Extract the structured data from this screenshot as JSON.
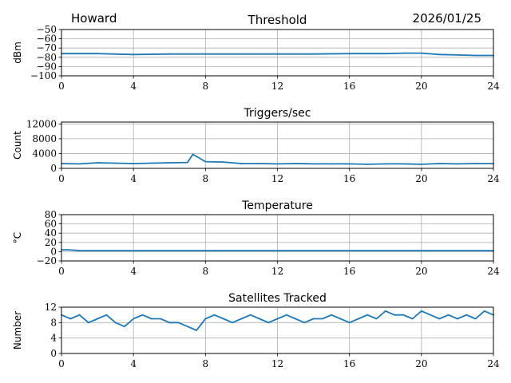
{
  "header": {
    "station": "Howard",
    "date": "2026/01/25"
  },
  "colors": {
    "series": "#1f77b4",
    "grid": "#b0b0b0",
    "axis": "#000000"
  },
  "chart_data": [
    {
      "type": "line",
      "title": "Threshold",
      "xlabel": "",
      "ylabel": "dBm",
      "xlim": [
        0,
        24
      ],
      "ylim": [
        -100,
        -50
      ],
      "xticks": [
        "0",
        "4",
        "8",
        "12",
        "16",
        "20",
        "24"
      ],
      "yticks": [
        "−50",
        "−60",
        "−70",
        "−80",
        "−90",
        "−100"
      ],
      "grid": true,
      "x": [
        0,
        2,
        4,
        6,
        8,
        10,
        12,
        14,
        16,
        18,
        19,
        20,
        21,
        22,
        23,
        24
      ],
      "values": [
        -76,
        -76,
        -77,
        -76.5,
        -76.5,
        -76.5,
        -76.5,
        -76.5,
        -76,
        -76,
        -75.5,
        -75.5,
        -77,
        -77.5,
        -78,
        -78
      ]
    },
    {
      "type": "line",
      "title": "Triggers/sec",
      "xlabel": "",
      "ylabel": "Count",
      "xlim": [
        0,
        24
      ],
      "ylim": [
        0,
        12500
      ],
      "xticks": [
        "0",
        "4",
        "8",
        "12",
        "16",
        "20",
        "24"
      ],
      "yticks": [
        "0",
        "4000",
        "8000",
        "12000"
      ],
      "grid": true,
      "x": [
        0,
        1,
        2,
        3,
        4,
        5,
        6,
        7,
        7.3,
        8,
        9,
        10,
        11,
        12,
        13,
        14,
        15,
        16,
        17,
        18,
        19,
        20,
        21,
        22,
        23,
        24
      ],
      "values": [
        1300,
        1200,
        1500,
        1400,
        1300,
        1400,
        1500,
        1600,
        3800,
        1800,
        1700,
        1300,
        1300,
        1200,
        1300,
        1200,
        1200,
        1200,
        1100,
        1200,
        1200,
        1100,
        1300,
        1200,
        1300,
        1300
      ]
    },
    {
      "type": "line",
      "title": "Temperature",
      "xlabel": "",
      "ylabel": "°C",
      "xlim": [
        0,
        24
      ],
      "ylim": [
        -20,
        80
      ],
      "xticks": [
        "0",
        "4",
        "8",
        "12",
        "16",
        "20",
        "24"
      ],
      "yticks": [
        "−20",
        "0",
        "20",
        "40",
        "60",
        "80"
      ],
      "grid": true,
      "x": [
        0,
        0.4,
        0.8,
        1,
        4,
        8,
        12,
        16,
        20,
        24
      ],
      "values": [
        4,
        4,
        3,
        2,
        2,
        2,
        2,
        2,
        2,
        2
      ]
    },
    {
      "type": "line",
      "title": "Satellites Tracked",
      "xlabel": "",
      "ylabel": "Number",
      "xlim": [
        0,
        24
      ],
      "ylim": [
        0,
        12
      ],
      "xticks": [
        "0",
        "4",
        "8",
        "12",
        "16",
        "20",
        "24"
      ],
      "yticks": [
        "0",
        "4",
        "8",
        "12"
      ],
      "grid": true,
      "x": [
        0,
        0.5,
        1,
        1.5,
        2,
        2.5,
        3,
        3.5,
        4,
        4.5,
        5,
        5.5,
        6,
        6.5,
        7,
        7.5,
        8,
        8.5,
        9,
        9.5,
        10,
        10.5,
        11,
        11.5,
        12,
        12.5,
        13,
        13.5,
        14,
        14.5,
        15,
        15.5,
        16,
        16.5,
        17,
        17.5,
        18,
        18.5,
        19,
        19.5,
        20,
        20.5,
        21,
        21.5,
        22,
        22.5,
        23,
        23.5,
        24
      ],
      "values": [
        10,
        9,
        10,
        8,
        9,
        10,
        8,
        7,
        9,
        10,
        9,
        9,
        8,
        8,
        7,
        6,
        9,
        10,
        9,
        8,
        9,
        10,
        9,
        8,
        9,
        10,
        9,
        8,
        9,
        9,
        10,
        9,
        8,
        9,
        10,
        9,
        11,
        10,
        10,
        9,
        11,
        10,
        9,
        10,
        9,
        10,
        9,
        11,
        10
      ]
    }
  ]
}
